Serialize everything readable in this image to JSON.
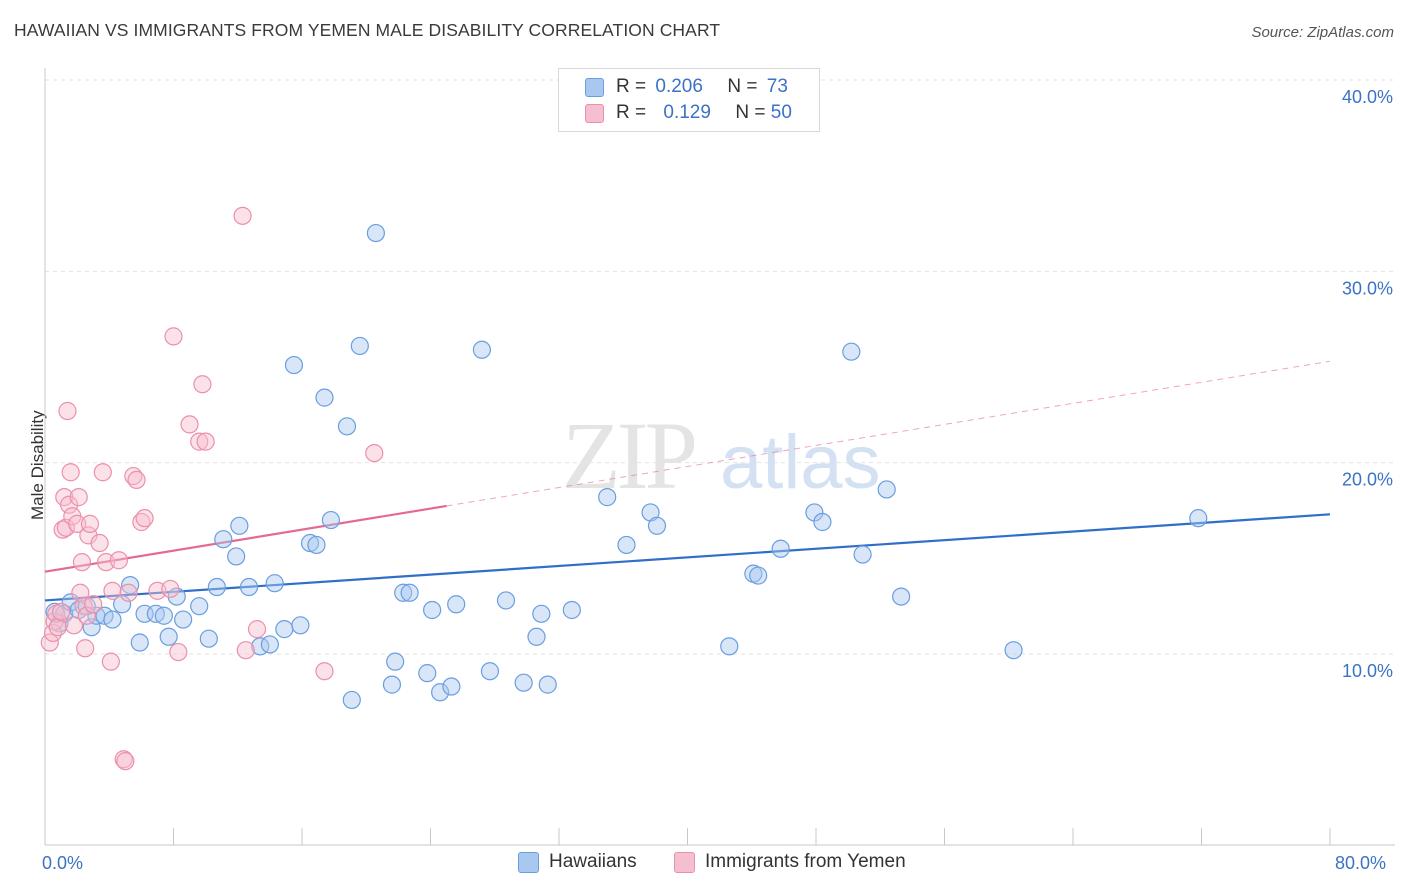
{
  "title": "HAWAIIAN VS IMMIGRANTS FROM YEMEN MALE DISABILITY CORRELATION CHART",
  "source": "Source: ZipAtlas.com",
  "watermark": {
    "zip": "ZIP",
    "atlas": "atlas"
  },
  "legend": {
    "rows": [
      {
        "r_label": "R =",
        "r_value": "0.206",
        "n_label": "N =",
        "n_value": "73"
      },
      {
        "r_label": "R =",
        "r_value": "0.129",
        "n_label": "N =",
        "n_value": "50"
      }
    ]
  },
  "bottom_legend": [
    "Hawaiians",
    "Immigrants from Yemen"
  ],
  "x_axis": {
    "min_label": "0.0%",
    "max_label": "80.0%"
  },
  "y_axis": {
    "tick_labels": [
      "10.0%",
      "20.0%",
      "30.0%",
      "40.0%"
    ]
  },
  "colors": {
    "blue": "#3b72c4",
    "blue_fill": "#a9c8f0",
    "blue_stroke": "#6a9ee0",
    "blue_line": "#2f6fc9",
    "pink_fill": "#f6bfcf",
    "pink_stroke": "#ec8fab",
    "pink_line": "#e36a92"
  },
  "chart_data": {
    "type": "scatter",
    "title": "HAWAIIAN VS IMMIGRANTS FROM YEMEN MALE DISABILITY CORRELATION CHART",
    "xlabel": "",
    "ylabel": "Male Disability",
    "xlim": [
      0,
      80
    ],
    "ylim": [
      0,
      42
    ],
    "grid": true,
    "legend_position": "top-center",
    "series": [
      {
        "name": "Hawaiians",
        "r": 0.206,
        "n": 73,
        "trend": {
          "x": [
            0,
            80
          ],
          "y": [
            12.8,
            17.3
          ],
          "dashed_after": null
        },
        "points": [
          [
            0.6,
            12.2
          ],
          [
            0.9,
            11.6
          ],
          [
            1.2,
            12.1
          ],
          [
            1.6,
            12.7
          ],
          [
            2.1,
            12.3
          ],
          [
            2.9,
            11.4
          ],
          [
            3.2,
            12.0
          ],
          [
            3.7,
            12.0
          ],
          [
            4.2,
            11.8
          ],
          [
            4.8,
            12.6
          ],
          [
            5.3,
            13.6
          ],
          [
            5.9,
            10.6
          ],
          [
            6.2,
            12.1
          ],
          [
            6.9,
            12.1
          ],
          [
            7.4,
            12.0
          ],
          [
            7.7,
            10.9
          ],
          [
            8.2,
            13.0
          ],
          [
            8.6,
            11.8
          ],
          [
            9.6,
            12.5
          ],
          [
            10.2,
            10.8
          ],
          [
            10.7,
            13.5
          ],
          [
            11.1,
            16.0
          ],
          [
            11.9,
            15.1
          ],
          [
            12.1,
            16.7
          ],
          [
            12.7,
            13.5
          ],
          [
            13.4,
            10.4
          ],
          [
            14.0,
            10.5
          ],
          [
            14.3,
            13.7
          ],
          [
            14.9,
            11.3
          ],
          [
            15.5,
            25.1
          ],
          [
            15.9,
            11.5
          ],
          [
            16.5,
            15.8
          ],
          [
            16.9,
            15.7
          ],
          [
            17.4,
            23.4
          ],
          [
            17.8,
            17.0
          ],
          [
            18.8,
            21.9
          ],
          [
            19.6,
            26.1
          ],
          [
            19.1,
            7.6
          ],
          [
            20.6,
            32.0
          ],
          [
            21.6,
            8.4
          ],
          [
            21.8,
            9.6
          ],
          [
            22.3,
            13.2
          ],
          [
            22.7,
            13.2
          ],
          [
            23.8,
            9.0
          ],
          [
            24.1,
            12.3
          ],
          [
            24.6,
            8.0
          ],
          [
            25.3,
            8.3
          ],
          [
            25.6,
            12.6
          ],
          [
            27.2,
            25.9
          ],
          [
            27.7,
            9.1
          ],
          [
            28.7,
            12.8
          ],
          [
            29.8,
            8.5
          ],
          [
            30.6,
            10.9
          ],
          [
            30.9,
            12.1
          ],
          [
            31.3,
            8.4
          ],
          [
            32.8,
            12.3
          ],
          [
            35.0,
            18.2
          ],
          [
            36.2,
            15.7
          ],
          [
            37.7,
            17.4
          ],
          [
            38.1,
            16.7
          ],
          [
            42.6,
            10.4
          ],
          [
            44.1,
            14.2
          ],
          [
            44.4,
            14.1
          ],
          [
            45.8,
            15.5
          ],
          [
            47.9,
            17.4
          ],
          [
            48.4,
            16.9
          ],
          [
            50.2,
            25.8
          ],
          [
            50.9,
            15.2
          ],
          [
            52.4,
            18.6
          ],
          [
            53.3,
            13.0
          ],
          [
            60.3,
            10.2
          ],
          [
            71.8,
            17.1
          ],
          [
            2.6,
            12.5
          ]
        ]
      },
      {
        "name": "Immigrants from Yemen",
        "r": 0.129,
        "n": 50,
        "trend": {
          "x": [
            0,
            80
          ],
          "y": [
            14.3,
            25.3
          ],
          "solid_until_x": 25
        },
        "points": [
          [
            0.3,
            10.6
          ],
          [
            0.5,
            11.1
          ],
          [
            0.6,
            11.7
          ],
          [
            0.7,
            12.1
          ],
          [
            0.8,
            11.4
          ],
          [
            1.0,
            12.2
          ],
          [
            1.1,
            16.5
          ],
          [
            1.2,
            18.2
          ],
          [
            1.3,
            16.6
          ],
          [
            1.5,
            17.8
          ],
          [
            1.6,
            19.5
          ],
          [
            1.4,
            22.7
          ],
          [
            1.7,
            17.2
          ],
          [
            1.8,
            11.5
          ],
          [
            2.0,
            16.8
          ],
          [
            2.1,
            18.2
          ],
          [
            2.2,
            13.2
          ],
          [
            2.3,
            14.8
          ],
          [
            2.4,
            12.5
          ],
          [
            2.5,
            10.3
          ],
          [
            2.6,
            12.0
          ],
          [
            2.7,
            16.2
          ],
          [
            2.8,
            16.8
          ],
          [
            3.0,
            12.6
          ],
          [
            3.4,
            15.8
          ],
          [
            3.6,
            19.5
          ],
          [
            3.8,
            14.8
          ],
          [
            4.1,
            9.6
          ],
          [
            4.2,
            13.3
          ],
          [
            4.6,
            14.9
          ],
          [
            4.9,
            4.5
          ],
          [
            5.0,
            4.4
          ],
          [
            5.2,
            13.2
          ],
          [
            5.5,
            19.3
          ],
          [
            5.7,
            19.1
          ],
          [
            6.0,
            16.9
          ],
          [
            6.2,
            17.1
          ],
          [
            7.0,
            13.3
          ],
          [
            8.0,
            26.6
          ],
          [
            7.8,
            13.4
          ],
          [
            8.3,
            10.1
          ],
          [
            9.6,
            21.1
          ],
          [
            9.0,
            22.0
          ],
          [
            9.8,
            24.1
          ],
          [
            10.0,
            21.1
          ],
          [
            12.3,
            32.9
          ],
          [
            12.5,
            10.2
          ],
          [
            13.2,
            11.3
          ],
          [
            17.4,
            9.1
          ],
          [
            20.5,
            20.5
          ]
        ]
      }
    ]
  }
}
